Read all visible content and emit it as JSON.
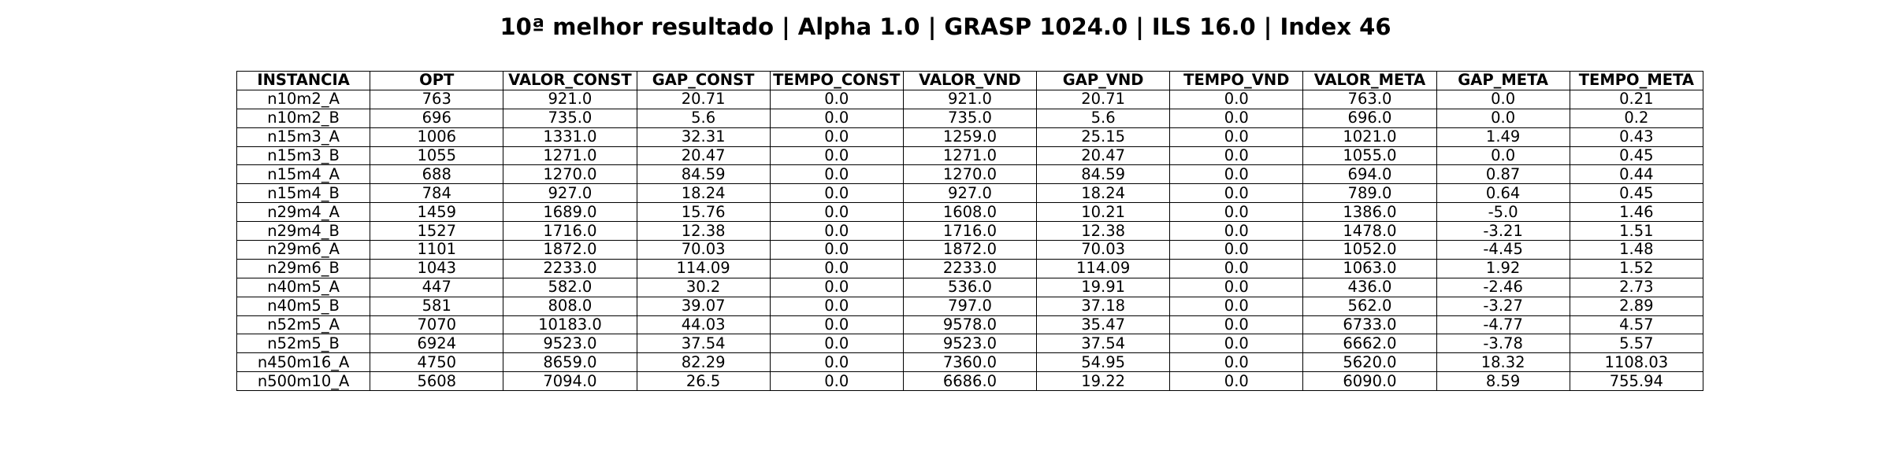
{
  "chart_data": {
    "type": "table",
    "title": "10ª melhor resultado | Alpha 1.0 | GRASP 1024.0 | ILS 16.0 | Index 46",
    "columns": [
      "INSTANCIA",
      "OPT",
      "VALOR_CONST",
      "GAP_CONST",
      "TEMPO_CONST",
      "VALOR_VND",
      "GAP_VND",
      "TEMPO_VND",
      "VALOR_META",
      "GAP_META",
      "TEMPO_META"
    ],
    "rows": [
      [
        "n10m2_A",
        "763",
        "921.0",
        "20.71",
        "0.0",
        "921.0",
        "20.71",
        "0.0",
        "763.0",
        "0.0",
        "0.21"
      ],
      [
        "n10m2_B",
        "696",
        "735.0",
        "5.6",
        "0.0",
        "735.0",
        "5.6",
        "0.0",
        "696.0",
        "0.0",
        "0.2"
      ],
      [
        "n15m3_A",
        "1006",
        "1331.0",
        "32.31",
        "0.0",
        "1259.0",
        "25.15",
        "0.0",
        "1021.0",
        "1.49",
        "0.43"
      ],
      [
        "n15m3_B",
        "1055",
        "1271.0",
        "20.47",
        "0.0",
        "1271.0",
        "20.47",
        "0.0",
        "1055.0",
        "0.0",
        "0.45"
      ],
      [
        "n15m4_A",
        "688",
        "1270.0",
        "84.59",
        "0.0",
        "1270.0",
        "84.59",
        "0.0",
        "694.0",
        "0.87",
        "0.44"
      ],
      [
        "n15m4_B",
        "784",
        "927.0",
        "18.24",
        "0.0",
        "927.0",
        "18.24",
        "0.0",
        "789.0",
        "0.64",
        "0.45"
      ],
      [
        "n29m4_A",
        "1459",
        "1689.0",
        "15.76",
        "0.0",
        "1608.0",
        "10.21",
        "0.0",
        "1386.0",
        "-5.0",
        "1.46"
      ],
      [
        "n29m4_B",
        "1527",
        "1716.0",
        "12.38",
        "0.0",
        "1716.0",
        "12.38",
        "0.0",
        "1478.0",
        "-3.21",
        "1.51"
      ],
      [
        "n29m6_A",
        "1101",
        "1872.0",
        "70.03",
        "0.0",
        "1872.0",
        "70.03",
        "0.0",
        "1052.0",
        "-4.45",
        "1.48"
      ],
      [
        "n29m6_B",
        "1043",
        "2233.0",
        "114.09",
        "0.0",
        "2233.0",
        "114.09",
        "0.0",
        "1063.0",
        "1.92",
        "1.52"
      ],
      [
        "n40m5_A",
        "447",
        "582.0",
        "30.2",
        "0.0",
        "536.0",
        "19.91",
        "0.0",
        "436.0",
        "-2.46",
        "2.73"
      ],
      [
        "n40m5_B",
        "581",
        "808.0",
        "39.07",
        "0.0",
        "797.0",
        "37.18",
        "0.0",
        "562.0",
        "-3.27",
        "2.89"
      ],
      [
        "n52m5_A",
        "7070",
        "10183.0",
        "44.03",
        "0.0",
        "9578.0",
        "35.47",
        "0.0",
        "6733.0",
        "-4.77",
        "4.57"
      ],
      [
        "n52m5_B",
        "6924",
        "9523.0",
        "37.54",
        "0.0",
        "9523.0",
        "37.54",
        "0.0",
        "6662.0",
        "-3.78",
        "5.57"
      ],
      [
        "n450m16_A",
        "4750",
        "8659.0",
        "82.29",
        "0.0",
        "7360.0",
        "54.95",
        "0.0",
        "5620.0",
        "18.32",
        "1108.03"
      ],
      [
        "n500m10_A",
        "5608",
        "7094.0",
        "26.5",
        "0.0",
        "6686.0",
        "19.22",
        "0.0",
        "6090.0",
        "8.59",
        "755.94"
      ]
    ]
  }
}
